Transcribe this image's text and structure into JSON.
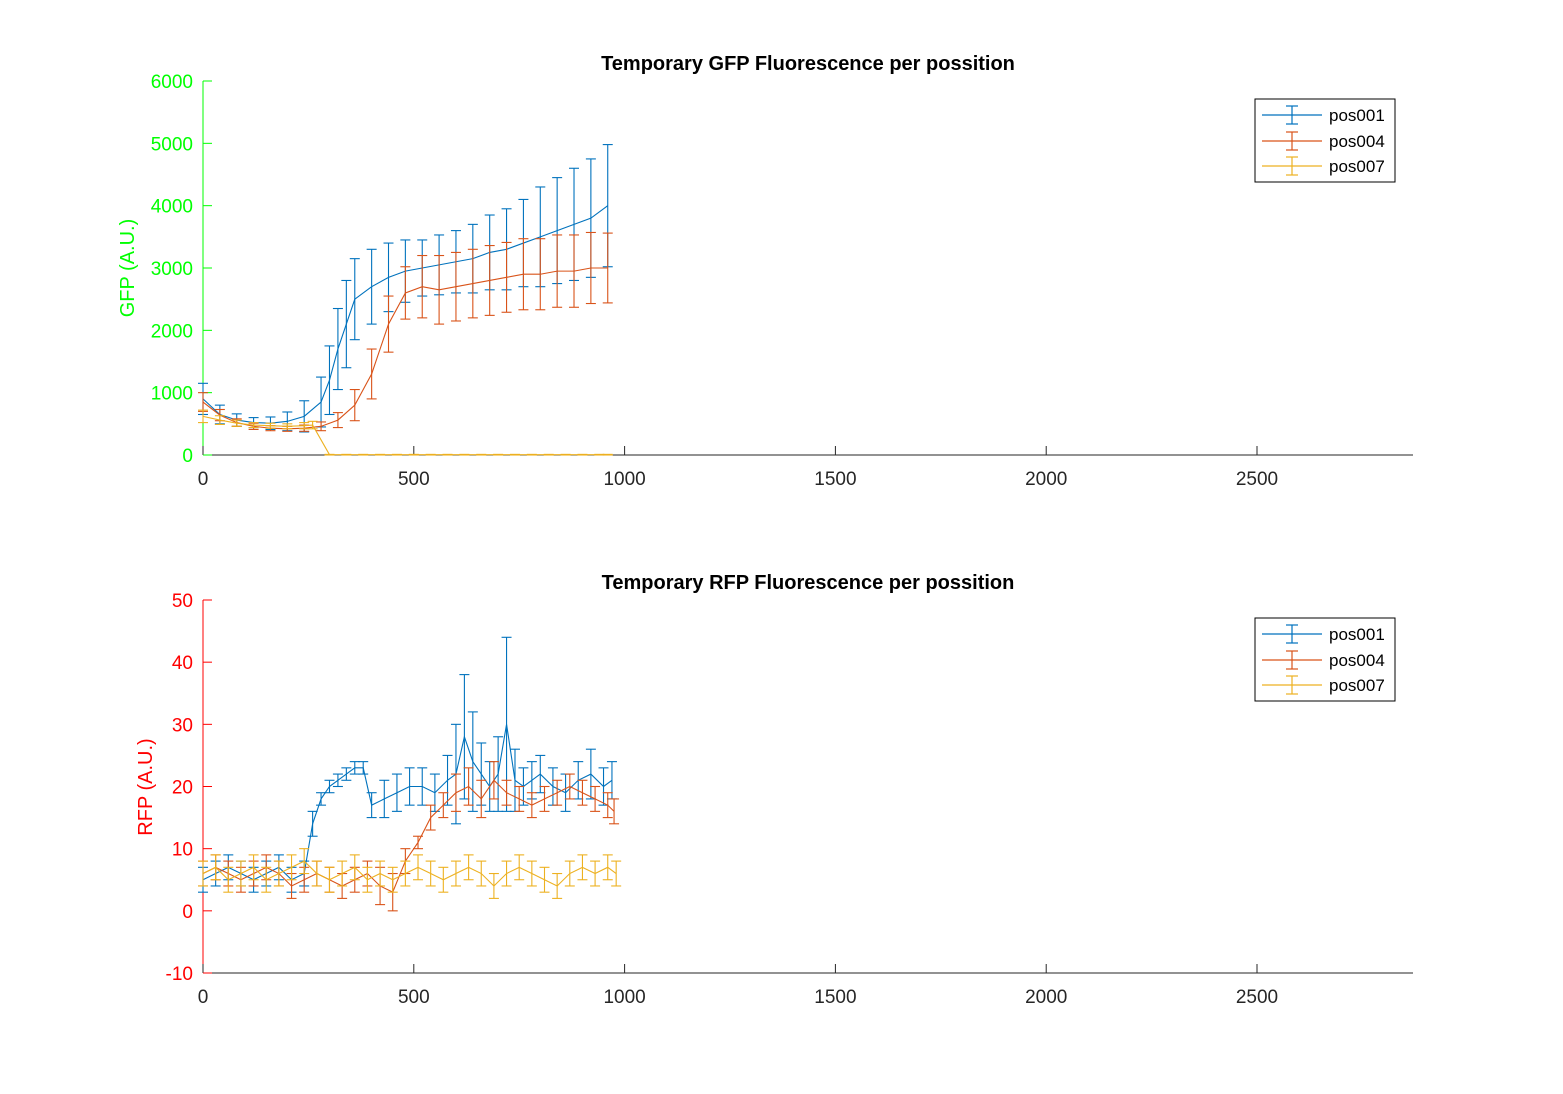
{
  "chart_data": [
    {
      "type": "line",
      "title": "Temporary GFP Fluorescence per possition",
      "xlabel": "",
      "ylabel": "GFP (A.U.)",
      "xlim": [
        0,
        2870
      ],
      "ylim": [
        0,
        6000
      ],
      "xticks": [
        0,
        500,
        1000,
        1500,
        2000,
        2500
      ],
      "yticks": [
        0,
        1000,
        2000,
        3000,
        4000,
        5000,
        6000
      ],
      "axis_color": "#00ff00",
      "grid": false,
      "legend_position": "top-right",
      "error_bars": true,
      "series": [
        {
          "name": "pos001",
          "color": "#0072bd",
          "x": [
            0,
            40,
            80,
            120,
            160,
            200,
            240,
            280,
            300,
            320,
            340,
            360,
            400,
            440,
            480,
            520,
            560,
            600,
            640,
            680,
            720,
            760,
            800,
            840,
            880,
            920,
            960
          ],
          "y": [
            900,
            650,
            560,
            520,
            510,
            540,
            620,
            850,
            1200,
            1700,
            2100,
            2500,
            2700,
            2850,
            2950,
            3000,
            3050,
            3100,
            3150,
            3250,
            3300,
            3400,
            3500,
            3600,
            3700,
            3800,
            4000
          ],
          "yerr": [
            250,
            150,
            100,
            80,
            100,
            150,
            250,
            400,
            550,
            650,
            700,
            650,
            600,
            550,
            500,
            450,
            480,
            500,
            550,
            600,
            650,
            700,
            800,
            850,
            900,
            950,
            980
          ]
        },
        {
          "name": "pos004",
          "color": "#d95319",
          "x": [
            0,
            40,
            80,
            120,
            160,
            200,
            240,
            280,
            320,
            360,
            400,
            440,
            480,
            520,
            560,
            600,
            640,
            680,
            720,
            760,
            800,
            840,
            880,
            920,
            960
          ],
          "y": [
            850,
            640,
            520,
            460,
            430,
            420,
            430,
            460,
            560,
            800,
            1300,
            2100,
            2600,
            2700,
            2650,
            2700,
            2750,
            2800,
            2850,
            2900,
            2900,
            2950,
            2950,
            3000,
            3000
          ],
          "yerr": [
            150,
            90,
            60,
            50,
            40,
            40,
            50,
            70,
            120,
            250,
            400,
            450,
            420,
            500,
            550,
            550,
            550,
            560,
            560,
            570,
            570,
            580,
            580,
            570,
            560
          ]
        },
        {
          "name": "pos007",
          "color": "#edb120",
          "x": [
            0,
            40,
            80,
            120,
            160,
            200,
            240,
            260,
            300,
            340,
            380,
            420,
            460,
            500,
            540,
            580,
            620,
            660,
            700,
            740,
            780,
            820,
            860,
            900,
            940,
            960
          ],
          "y": [
            620,
            560,
            510,
            480,
            470,
            460,
            470,
            480,
            5,
            5,
            5,
            5,
            5,
            5,
            5,
            5,
            5,
            5,
            5,
            5,
            5,
            5,
            5,
            5,
            5,
            5
          ],
          "yerr": [
            100,
            70,
            50,
            40,
            40,
            40,
            50,
            60,
            5,
            5,
            5,
            5,
            5,
            5,
            5,
            5,
            5,
            5,
            5,
            5,
            5,
            5,
            5,
            5,
            5,
            5
          ]
        }
      ]
    },
    {
      "type": "line",
      "title": "Temporary RFP Fluorescence per possition",
      "xlabel": "",
      "ylabel": "RFP (A.U.)",
      "xlim": [
        0,
        2870
      ],
      "ylim": [
        -10,
        50
      ],
      "xticks": [
        0,
        500,
        1000,
        1500,
        2000,
        2500
      ],
      "yticks": [
        -10,
        0,
        10,
        20,
        30,
        40,
        50
      ],
      "axis_color": "#ff0000",
      "grid": false,
      "legend_position": "top-right",
      "error_bars": true,
      "series": [
        {
          "name": "pos001",
          "color": "#0072bd",
          "x": [
            0,
            30,
            60,
            90,
            120,
            150,
            180,
            210,
            240,
            260,
            280,
            300,
            320,
            340,
            360,
            380,
            400,
            430,
            460,
            490,
            520,
            550,
            580,
            600,
            620,
            640,
            660,
            680,
            700,
            720,
            740,
            760,
            780,
            800,
            830,
            860,
            890,
            920,
            950,
            970
          ],
          "y": [
            5,
            6,
            7,
            6,
            5,
            6,
            7,
            5,
            6,
            14,
            18,
            20,
            21,
            22,
            23,
            23,
            17,
            18,
            19,
            20,
            20,
            19,
            21,
            22,
            28,
            24,
            22,
            20,
            22,
            30,
            21,
            20,
            21,
            22,
            20,
            19,
            21,
            22,
            20,
            21
          ],
          "yerr": [
            2,
            2,
            2,
            2,
            2,
            2,
            2,
            2,
            2,
            2,
            1,
            1,
            1,
            1,
            1,
            1,
            2,
            3,
            3,
            3,
            3,
            3,
            4,
            8,
            10,
            8,
            5,
            4,
            6,
            14,
            5,
            3,
            3,
            3,
            3,
            3,
            3,
            4,
            3,
            3
          ]
        },
        {
          "name": "pos004",
          "color": "#d95319",
          "x": [
            0,
            30,
            60,
            90,
            120,
            150,
            180,
            210,
            240,
            270,
            300,
            330,
            360,
            390,
            420,
            450,
            480,
            510,
            540,
            570,
            600,
            630,
            660,
            690,
            720,
            750,
            780,
            810,
            840,
            870,
            900,
            930,
            960,
            975
          ],
          "y": [
            6,
            7,
            6,
            5,
            6,
            7,
            6,
            4,
            5,
            6,
            5,
            4,
            5,
            6,
            4,
            3,
            8,
            11,
            15,
            17,
            19,
            20,
            18,
            21,
            19,
            18,
            17,
            18,
            19,
            20,
            19,
            18,
            17,
            16
          ],
          "yerr": [
            2,
            2,
            2,
            2,
            2,
            2,
            2,
            2,
            2,
            2,
            2,
            2,
            2,
            2,
            3,
            3,
            2,
            1,
            2,
            2,
            3,
            3,
            3,
            3,
            2,
            2,
            2,
            2,
            2,
            2,
            2,
            2,
            2,
            2
          ]
        },
        {
          "name": "pos007",
          "color": "#edb120",
          "x": [
            0,
            30,
            60,
            90,
            120,
            150,
            180,
            210,
            240,
            270,
            300,
            330,
            360,
            390,
            420,
            450,
            480,
            510,
            540,
            570,
            600,
            630,
            660,
            690,
            720,
            750,
            780,
            810,
            840,
            870,
            900,
            930,
            960,
            980
          ],
          "y": [
            6,
            7,
            5,
            6,
            7,
            5,
            6,
            7,
            8,
            6,
            5,
            6,
            7,
            5,
            6,
            5,
            6,
            7,
            6,
            5,
            6,
            7,
            6,
            4,
            6,
            7,
            6,
            5,
            4,
            6,
            7,
            6,
            7,
            6
          ],
          "yerr": [
            2,
            2,
            2,
            2,
            2,
            2,
            2,
            2,
            2,
            2,
            2,
            2,
            2,
            2,
            2,
            2,
            2,
            2,
            2,
            2,
            2,
            2,
            2,
            2,
            2,
            2,
            2,
            2,
            2,
            2,
            2,
            2,
            2,
            2
          ]
        }
      ]
    }
  ]
}
